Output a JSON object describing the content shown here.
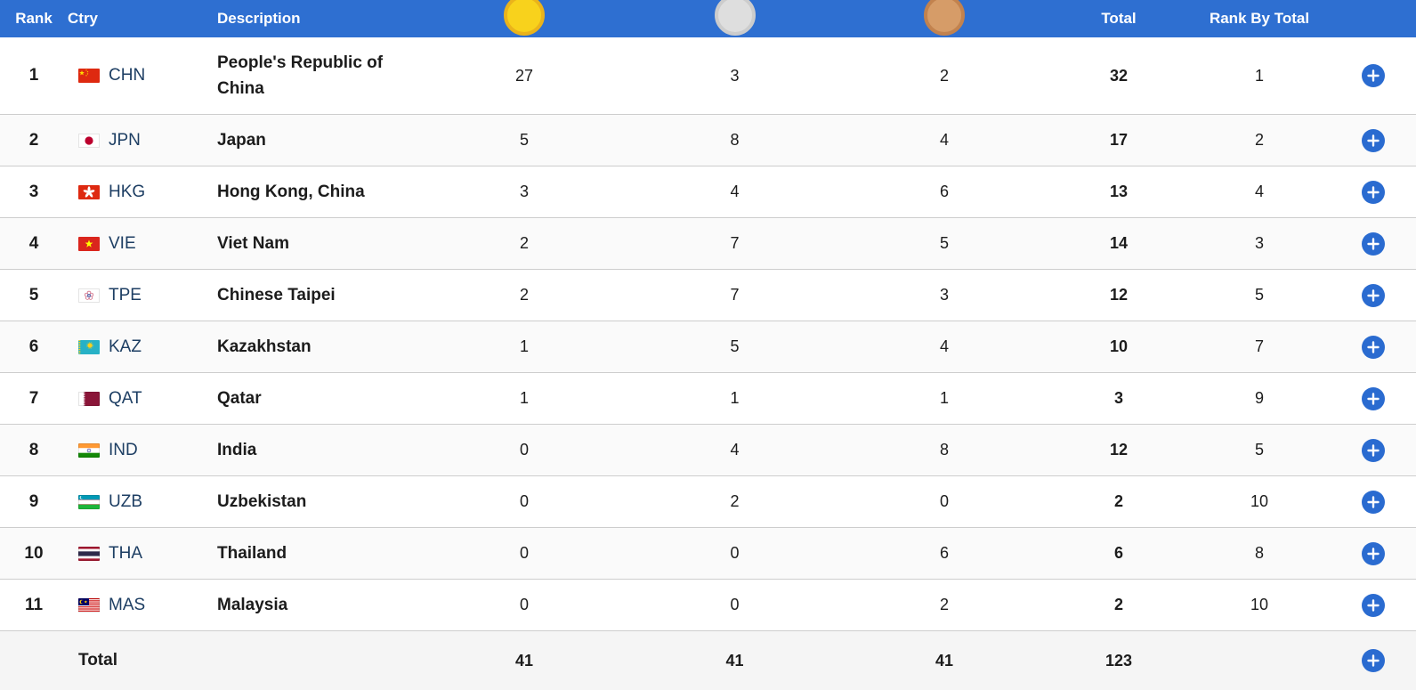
{
  "table": {
    "headers": {
      "rank": "Rank",
      "ctry": "Ctry",
      "description": "Description",
      "total": "Total",
      "rank_by_total": "Rank By Total"
    },
    "medal_columns": [
      {
        "id": "gold",
        "icon": "gold-medal-icon"
      },
      {
        "id": "silver",
        "icon": "silver-medal-icon"
      },
      {
        "id": "bronze",
        "icon": "bronze-medal-icon"
      }
    ],
    "rows": [
      {
        "rank": "1",
        "code": "CHN",
        "description": "People's Republic of China",
        "gold": "27",
        "silver": "3",
        "bronze": "2",
        "total": "32",
        "rank_by_total": "1"
      },
      {
        "rank": "2",
        "code": "JPN",
        "description": "Japan",
        "gold": "5",
        "silver": "8",
        "bronze": "4",
        "total": "17",
        "rank_by_total": "2"
      },
      {
        "rank": "3",
        "code": "HKG",
        "description": "Hong Kong, China",
        "gold": "3",
        "silver": "4",
        "bronze": "6",
        "total": "13",
        "rank_by_total": "4"
      },
      {
        "rank": "4",
        "code": "VIE",
        "description": "Viet Nam",
        "gold": "2",
        "silver": "7",
        "bronze": "5",
        "total": "14",
        "rank_by_total": "3"
      },
      {
        "rank": "5",
        "code": "TPE",
        "description": "Chinese Taipei",
        "gold": "2",
        "silver": "7",
        "bronze": "3",
        "total": "12",
        "rank_by_total": "5"
      },
      {
        "rank": "6",
        "code": "KAZ",
        "description": "Kazakhstan",
        "gold": "1",
        "silver": "5",
        "bronze": "4",
        "total": "10",
        "rank_by_total": "7"
      },
      {
        "rank": "7",
        "code": "QAT",
        "description": "Qatar",
        "gold": "1",
        "silver": "1",
        "bronze": "1",
        "total": "3",
        "rank_by_total": "9"
      },
      {
        "rank": "8",
        "code": "IND",
        "description": "India",
        "gold": "0",
        "silver": "4",
        "bronze": "8",
        "total": "12",
        "rank_by_total": "5"
      },
      {
        "rank": "9",
        "code": "UZB",
        "description": "Uzbekistan",
        "gold": "0",
        "silver": "2",
        "bronze": "0",
        "total": "2",
        "rank_by_total": "10"
      },
      {
        "rank": "10",
        "code": "THA",
        "description": "Thailand",
        "gold": "0",
        "silver": "0",
        "bronze": "6",
        "total": "6",
        "rank_by_total": "8"
      },
      {
        "rank": "11",
        "code": "MAS",
        "description": "Malaysia",
        "gold": "0",
        "silver": "0",
        "bronze": "2",
        "total": "2",
        "rank_by_total": "10"
      }
    ],
    "total_row": {
      "label": "Total",
      "gold": "41",
      "silver": "41",
      "bronze": "41",
      "total": "123",
      "rank_by_total": ""
    }
  },
  "icons": {
    "add_row": "plus-icon"
  },
  "medals": {
    "gold": {
      "fill": "#f8d21c",
      "ring": "#eab31b"
    },
    "silver": {
      "fill": "#dedede",
      "ring": "#cccccc"
    },
    "bronze": {
      "fill": "#d69c68",
      "ring": "#c2824e"
    }
  },
  "colors": {
    "header_bg": "#2e6fd1",
    "header_text": "#ffffff",
    "row_divider": "#cdcdcd",
    "alt_row_bg": "#fafafa",
    "total_row_bg": "#f5f5f5",
    "country_code_text": "#1d3e63",
    "body_text": "#1c1c1c",
    "add_button": "#2a6bd0"
  }
}
